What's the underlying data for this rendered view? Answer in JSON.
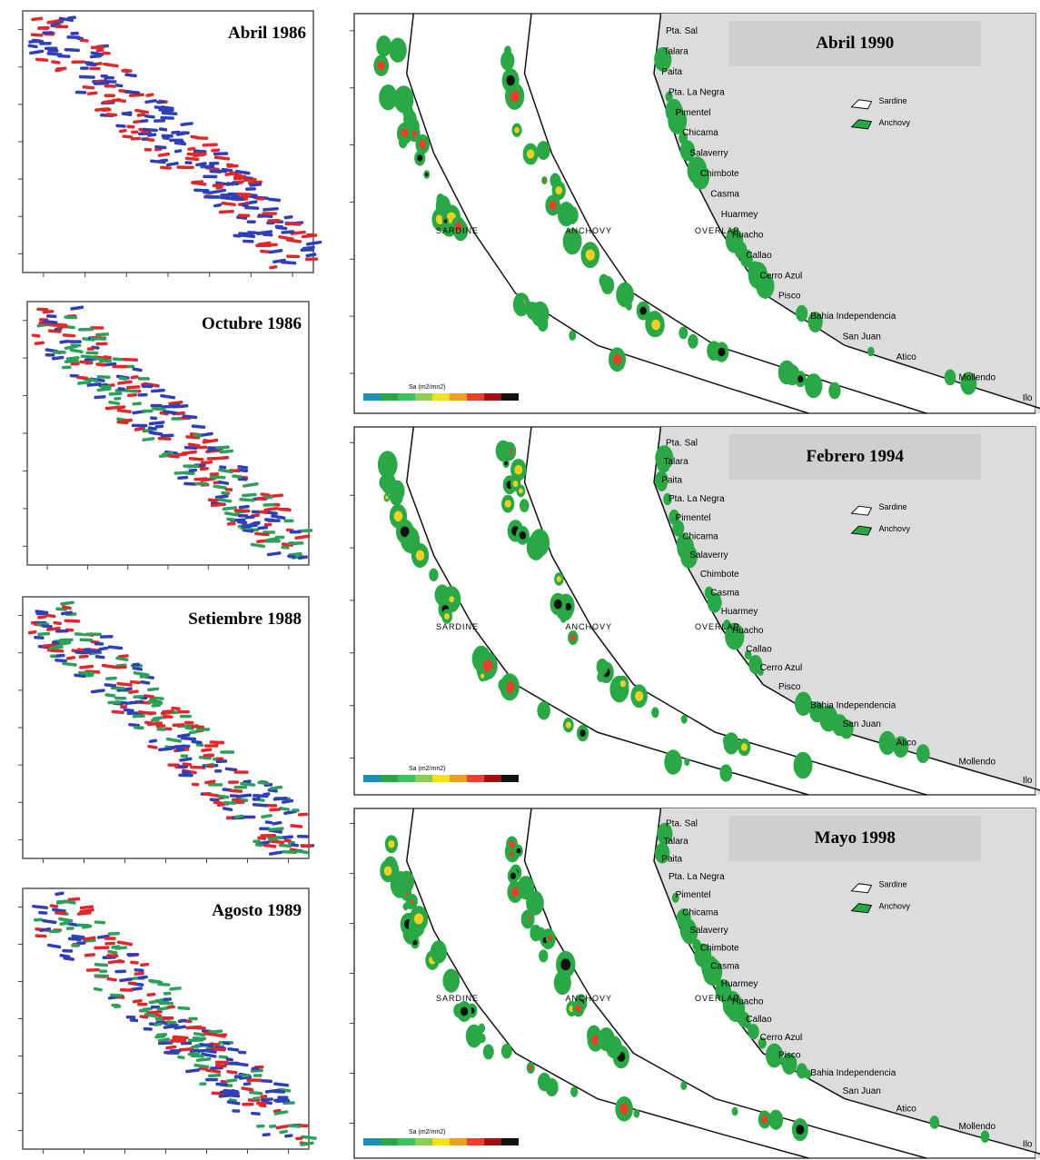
{
  "left_panels": [
    {
      "title": "Abril 1986"
    },
    {
      "title": "Octubre 1986"
    },
    {
      "title": "Setiembre 1988"
    },
    {
      "title": "Agosto 1989"
    }
  ],
  "right_panels": [
    {
      "title": "Abril 1990",
      "region_labels": [
        "SARDINE",
        "ANCHOVY",
        "OVERLAP"
      ],
      "legend": [
        "Sardine",
        "Anchovy"
      ],
      "scale_label": "Sa (m2/mn2)"
    },
    {
      "title": "Febrero 1994",
      "region_labels": [
        "SARDINE",
        "ANCHOVY",
        "OVERLAP"
      ],
      "legend": [
        "Sardine",
        "Anchovy"
      ],
      "scale_label": "Sa (m2/mn2)"
    },
    {
      "title": "Mayo 1998",
      "region_labels": [
        "SARDINE",
        "ANCHOVY",
        "OVERLAP"
      ],
      "legend": [
        "Sardine",
        "Anchovy"
      ],
      "scale_label": "Sa (m2/mn2)"
    }
  ],
  "places": [
    "Pta. Sal",
    "Talara",
    "Paita",
    "Pta. La Negra",
    "Pimentel",
    "Chicama",
    "Salaverry",
    "Chimbote",
    "Casma",
    "Huarmey",
    "Huacho",
    "Callao",
    "Cerro Azul",
    "Pisco",
    "Bahia Independencia",
    "San Juan",
    "Atico",
    "Mollendo",
    "Ilo"
  ]
}
